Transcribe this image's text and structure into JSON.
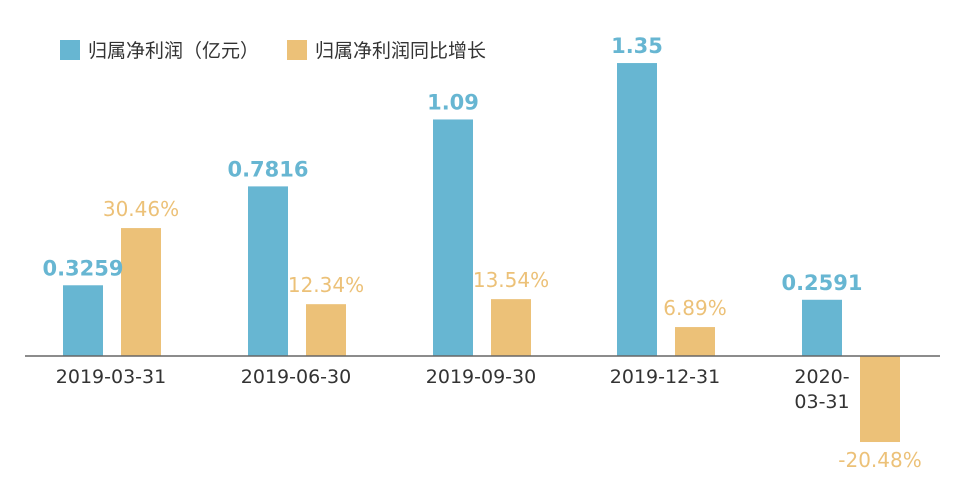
{
  "chart_data": {
    "type": "bar",
    "categories": [
      [
        "2019-03-31"
      ],
      [
        "2019-06-30"
      ],
      [
        "2019-09-30"
      ],
      [
        "2019-12-31"
      ],
      [
        "2020-",
        "03-31"
      ]
    ],
    "series": [
      {
        "name": "归属净利润（亿元）",
        "values": [
          0.3259,
          0.7816,
          1.09,
          1.35,
          0.2591
        ],
        "labels": [
          "0.3259",
          "0.7816",
          "1.09",
          "1.35",
          "0.2591"
        ],
        "color": "#67b6d2"
      },
      {
        "name": "归属净利润同比增长",
        "values": [
          30.46,
          12.34,
          13.54,
          6.89,
          -20.48
        ],
        "labels": [
          "30.46%",
          "12.34%",
          "13.54%",
          "6.89%",
          "-20.48%"
        ],
        "color": "#ecc178"
      }
    ],
    "legend_position": "top-left",
    "axis_line_color": "#666666",
    "grid": false
  }
}
